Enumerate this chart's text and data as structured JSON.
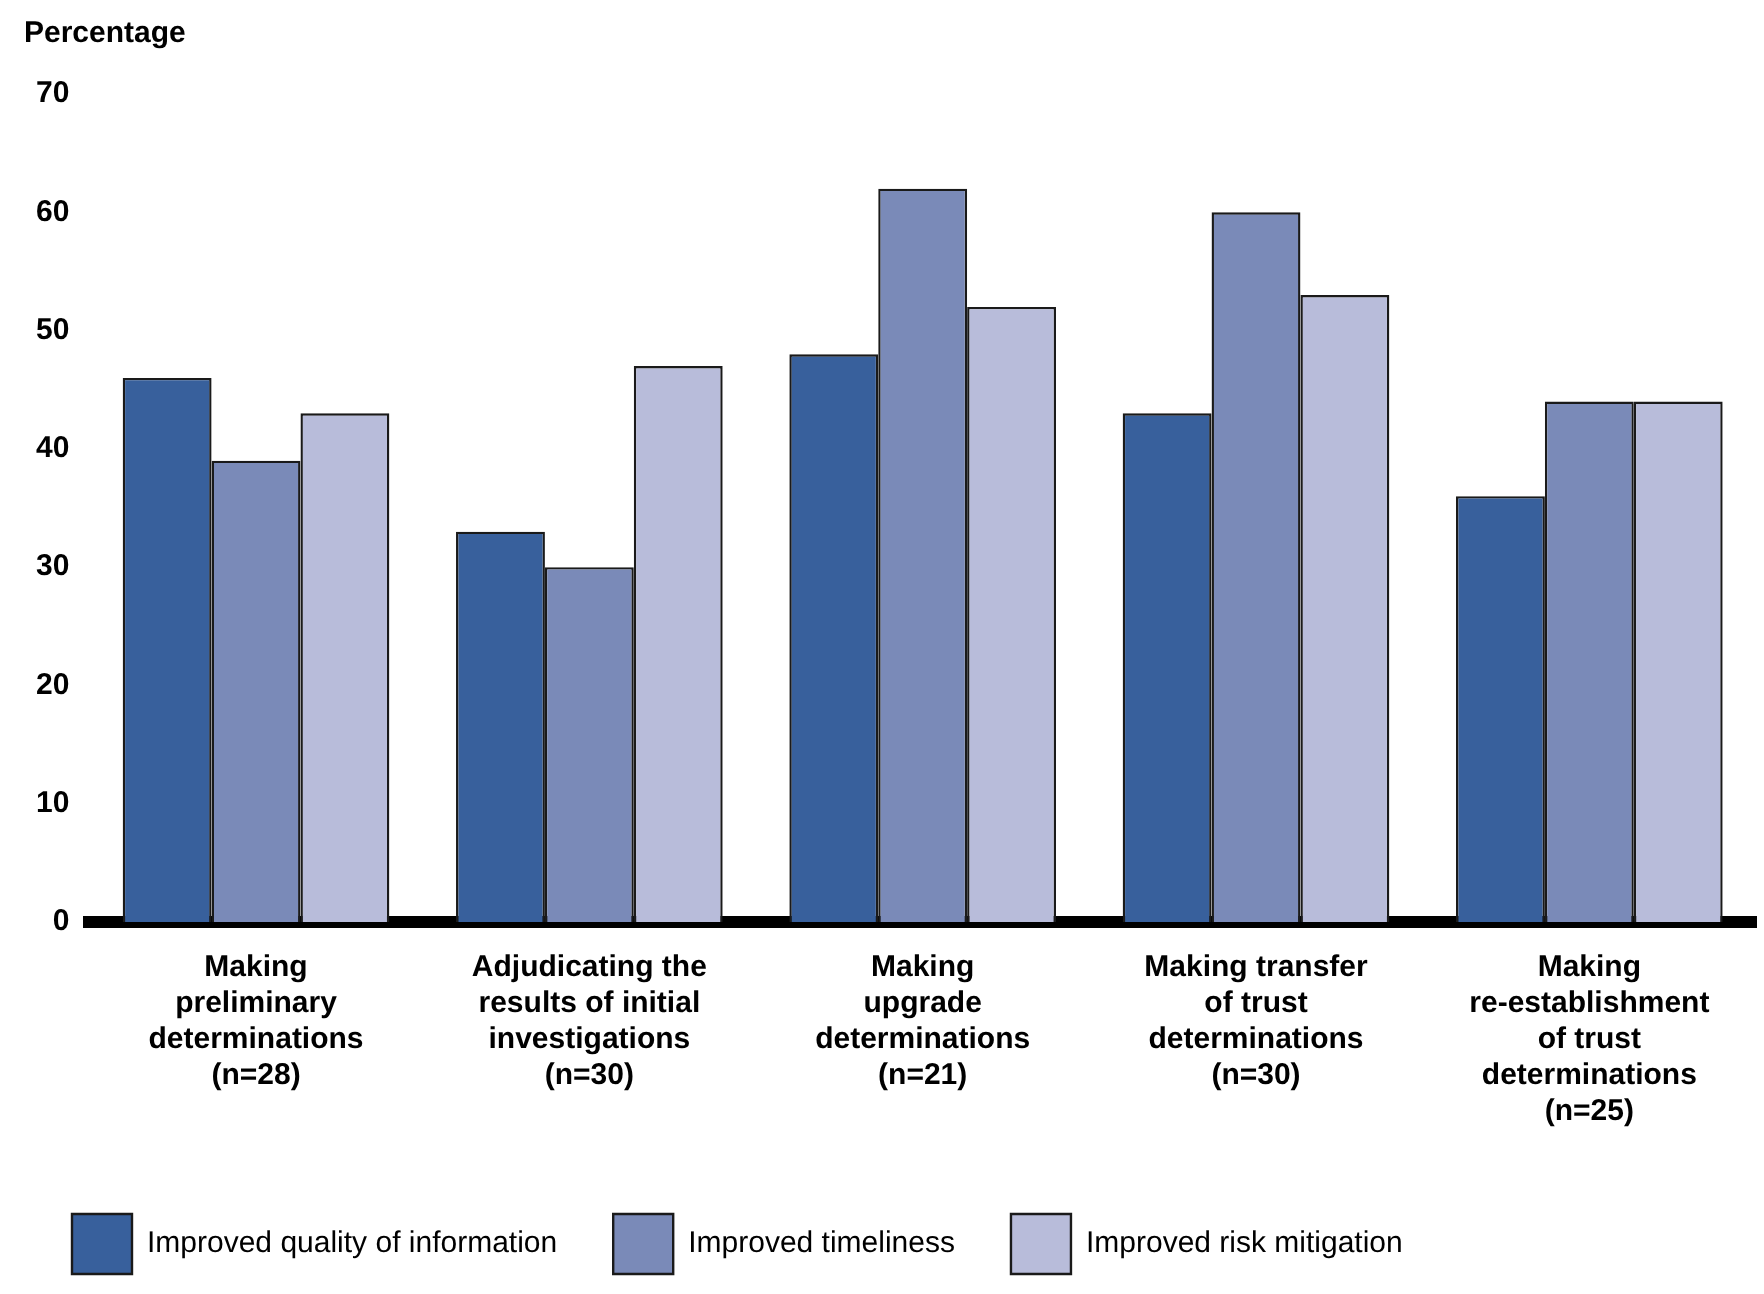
{
  "chart_data": {
    "type": "bar",
    "ylabel": "Percentage",
    "categories": [
      "Making\npreliminary\ndeterminations\n(n=28)",
      "Adjudicating the\nresults of initial\ninvestigations\n(n=30)",
      "Making\nupgrade\ndeterminations\n(n=21)",
      "Making transfer\nof trust\ndeterminations\n(n=30)",
      "Making\nre-establishment\nof trust\ndeterminations\n(n=25)"
    ],
    "series": [
      {
        "name": "Improved quality of information",
        "color": "#38609c",
        "values": [
          46,
          33,
          48,
          43,
          36
        ]
      },
      {
        "name": "Improved timeliness",
        "color": "#7a8ab8",
        "values": [
          39,
          30,
          62,
          60,
          44
        ]
      },
      {
        "name": "Improved risk mitigation",
        "color": "#b8bcda",
        "values": [
          43,
          47,
          52,
          53,
          44
        ]
      }
    ],
    "ylim": [
      0,
      70
    ],
    "yticks": [
      0,
      10,
      20,
      30,
      40,
      50,
      60,
      70
    ],
    "grid": false,
    "legend": "bottom"
  }
}
